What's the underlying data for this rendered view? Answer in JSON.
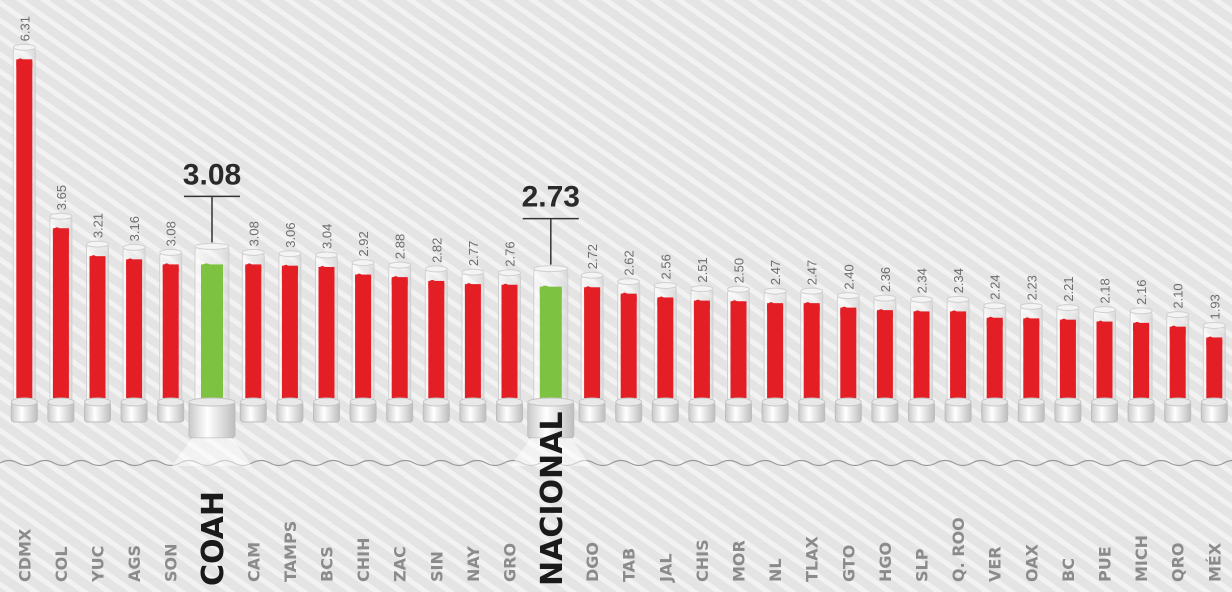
{
  "chart_data": {
    "type": "bar",
    "categories": [
      "CDMX",
      "COL",
      "YUC",
      "AGS",
      "SON",
      "COAH",
      "CAM",
      "TAMPS",
      "BCS",
      "CHIH",
      "ZAC",
      "SIN",
      "NAY",
      "GRO",
      "NACIONAL",
      "DGO",
      "TAB",
      "JAL",
      "CHIS",
      "MOR",
      "NL",
      "TLAX",
      "GTO",
      "HGO",
      "SLP",
      "Q. ROO",
      "VER",
      "OAX",
      "BC",
      "PUE",
      "MICH",
      "QRO",
      "MÉX"
    ],
    "values": [
      6.31,
      3.65,
      3.21,
      3.16,
      3.08,
      3.08,
      3.08,
      3.06,
      3.04,
      2.92,
      2.88,
      2.82,
      2.77,
      2.76,
      2.73,
      2.72,
      2.62,
      2.56,
      2.51,
      2.5,
      2.47,
      2.47,
      2.4,
      2.36,
      2.34,
      2.34,
      2.24,
      2.23,
      2.21,
      2.18,
      2.16,
      2.1,
      1.93
    ],
    "value_labels": [
      "6.31",
      "3.65",
      "3.21",
      "3.16",
      "3.08",
      "3.08",
      "3.08",
      "3.06",
      "3.04",
      "2.92",
      "2.88",
      "2.82",
      "2.77",
      "2.76",
      "2.73",
      "2.72",
      "2.62",
      "2.56",
      "2.51",
      "2.50",
      "2.47",
      "2.47",
      "2.40",
      "2.36",
      "2.34",
      "2.34",
      "2.24",
      "2.23",
      "2.21",
      "2.18",
      "2.16",
      "2.10",
      "1.93"
    ],
    "colors": [
      "#e31e24",
      "#e31e24",
      "#e31e24",
      "#e31e24",
      "#e31e24",
      "#7ec242",
      "#e31e24",
      "#e31e24",
      "#e31e24",
      "#e31e24",
      "#e31e24",
      "#e31e24",
      "#e31e24",
      "#e31e24",
      "#7ec242",
      "#e31e24",
      "#e31e24",
      "#e31e24",
      "#e31e24",
      "#e31e24",
      "#e31e24",
      "#e31e24",
      "#e31e24",
      "#e31e24",
      "#e31e24",
      "#e31e24",
      "#e31e24",
      "#e31e24",
      "#e31e24",
      "#e31e24",
      "#e31e24",
      "#e31e24",
      "#e31e24"
    ],
    "highlight_color": "#7ec242"
  }
}
